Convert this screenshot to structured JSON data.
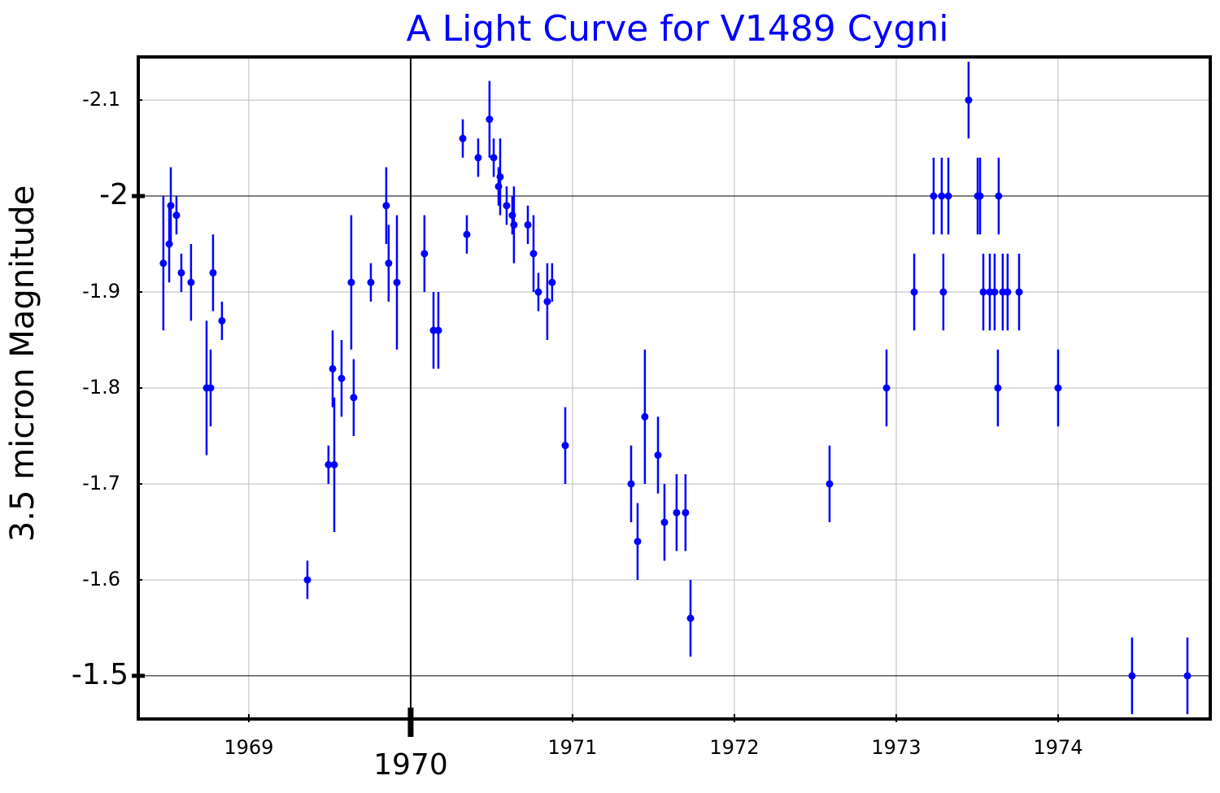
{
  "chart_data": {
    "type": "errorbar",
    "title": "A Light Curve for V1489 Cygni",
    "title_color": "#0000ff",
    "ylabel": "3.5 micron Magnitude",
    "xlim": [
      1968.317,
      1974.94
    ],
    "xticks": [
      1969,
      1971,
      1972,
      1973,
      1974
    ],
    "major_xticks": [
      1970
    ],
    "ylim": [
      -1.455,
      -2.145
    ],
    "yticks": [
      -2.1,
      -1.9,
      -1.8,
      -1.7,
      -1.6
    ],
    "major_yticks": [
      -2,
      -1.5
    ],
    "grid": true,
    "series": [
      {
        "name": "V1489 Cygni",
        "color": "#0000ff",
        "x": [
          1968.472,
          1968.508,
          1968.518,
          1968.553,
          1968.583,
          1968.643,
          1968.739,
          1968.764,
          1968.779,
          1968.834,
          1969.362,
          1969.492,
          1969.518,
          1969.528,
          1969.573,
          1969.633,
          1969.648,
          1969.754,
          1969.849,
          1969.864,
          1969.915,
          1970.085,
          1970.141,
          1970.171,
          1970.322,
          1970.347,
          1970.417,
          1970.487,
          1970.513,
          1970.543,
          1970.553,
          1970.593,
          1970.628,
          1970.638,
          1970.724,
          1970.759,
          1970.789,
          1970.844,
          1970.874,
          1970.955,
          1971.362,
          1971.402,
          1971.447,
          1971.528,
          1971.568,
          1971.643,
          1971.698,
          1971.729,
          1972.588,
          1972.94,
          1973.111,
          1973.231,
          1973.281,
          1973.291,
          1973.322,
          1973.447,
          1973.503,
          1973.518,
          1973.538,
          1973.578,
          1973.608,
          1973.628,
          1973.633,
          1973.658,
          1973.688,
          1973.759,
          1974.0,
          1974.457,
          1974.799
        ],
        "values": [
          -1.93,
          -1.95,
          -1.99,
          -1.98,
          -1.92,
          -1.91,
          -1.8,
          -1.8,
          -1.92,
          -1.87,
          -1.6,
          -1.72,
          -1.82,
          -1.72,
          -1.81,
          -1.91,
          -1.79,
          -1.91,
          -1.99,
          -1.93,
          -1.91,
          -1.94,
          -1.86,
          -1.86,
          -2.06,
          -1.96,
          -2.04,
          -2.08,
          -2.04,
          -2.01,
          -2.02,
          -1.99,
          -1.98,
          -1.97,
          -1.97,
          -1.94,
          -1.9,
          -1.89,
          -1.91,
          -1.74,
          -1.7,
          -1.64,
          -1.77,
          -1.73,
          -1.66,
          -1.67,
          -1.67,
          -1.56,
          -1.7,
          -1.8,
          -1.9,
          -2.0,
          -2.0,
          -1.9,
          -2.0,
          -2.1,
          -2.0,
          -2.0,
          -1.9,
          -1.9,
          -1.9,
          -1.8,
          -2.0,
          -1.9,
          -1.9,
          -1.9,
          -1.8,
          -1.5,
          -1.5
        ],
        "errors": [
          0.07,
          0.04,
          0.04,
          0.02,
          0.02,
          0.04,
          0.07,
          0.04,
          0.04,
          0.02,
          0.02,
          0.02,
          0.04,
          0.07,
          0.04,
          0.07,
          0.04,
          0.02,
          0.04,
          0.04,
          0.07,
          0.04,
          0.04,
          0.04,
          0.02,
          0.02,
          0.02,
          0.04,
          0.02,
          0.02,
          0.04,
          0.02,
          0.02,
          0.04,
          0.02,
          0.04,
          0.02,
          0.04,
          0.02,
          0.04,
          0.04,
          0.04,
          0.07,
          0.04,
          0.04,
          0.04,
          0.04,
          0.04,
          0.04,
          0.04,
          0.04,
          0.04,
          0.04,
          0.04,
          0.04,
          0.04,
          0.04,
          0.04,
          0.04,
          0.04,
          0.04,
          0.04,
          0.04,
          0.04,
          0.04,
          0.04,
          0.04,
          0.04,
          0.04
        ]
      }
    ]
  }
}
